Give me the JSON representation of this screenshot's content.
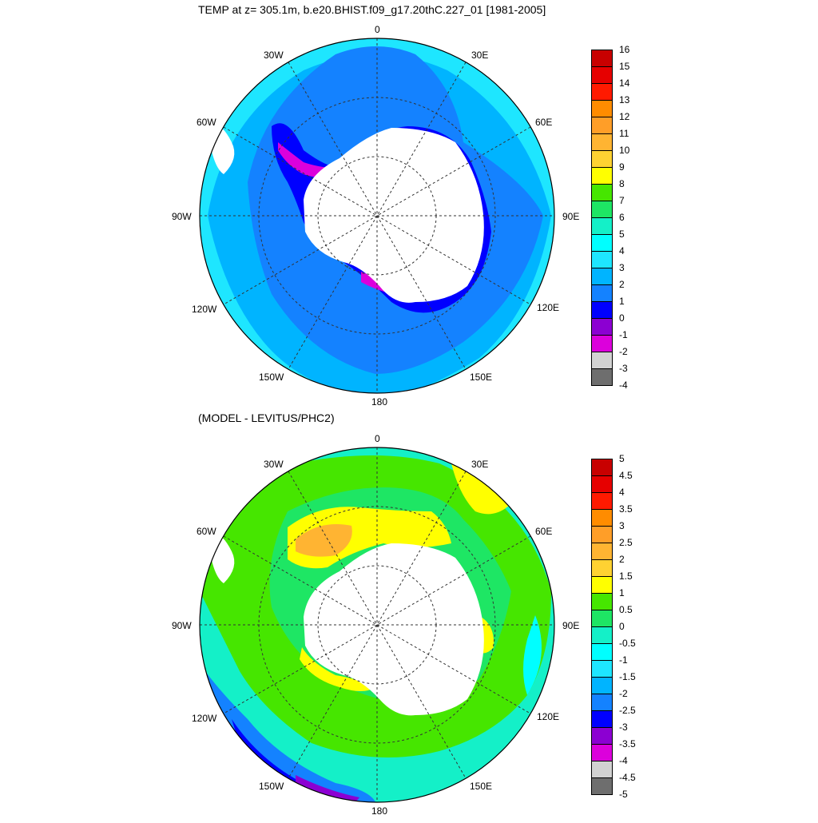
{
  "title_top": "TEMP at z= 305.1m, b.e20.BHIST.f09_g17.20thC.227_01 [1981-2005]",
  "title_bottom": "(MODEL - LEVITUS/PHC2)",
  "lon_labels": {
    "top": "0",
    "e30": "30E",
    "e60": "60E",
    "e90": "90E",
    "e120": "120E",
    "e150": "150E",
    "bottom": "180",
    "w150": "150W",
    "w120": "120W",
    "w90": "90W",
    "w60": "60W",
    "w30": "30W"
  },
  "colorbar_top": {
    "labels": [
      "16",
      "15",
      "14",
      "13",
      "12",
      "11",
      "10",
      "9",
      "8",
      "7",
      "6",
      "5",
      "4",
      "3",
      "2",
      "1",
      "0",
      "-1",
      "-2",
      "-3",
      "-4"
    ],
    "colors": [
      "#c80000",
      "#e60000",
      "#ff1a00",
      "#ff8c00",
      "#ff9e28",
      "#ffb432",
      "#ffd232",
      "#ffff00",
      "#46e600",
      "#1ee664",
      "#14f0c8",
      "#00ffff",
      "#1ee6ff",
      "#00b4ff",
      "#1482ff",
      "#0000ff",
      "#8c00d2",
      "#dc00dc",
      "#d2d2d2",
      "#6e6e6e"
    ]
  },
  "colorbar_bottom": {
    "labels": [
      "5",
      "4.5",
      "4",
      "3.5",
      "3",
      "2.5",
      "2",
      "1.5",
      "1",
      "0.5",
      "0",
      "-0.5",
      "-1",
      "-1.5",
      "-2",
      "-2.5",
      "-3",
      "-3.5",
      "-4",
      "-4.5",
      "-5"
    ],
    "colors": [
      "#c80000",
      "#e60000",
      "#ff1a00",
      "#ff8c00",
      "#ff9e28",
      "#ffb432",
      "#ffd232",
      "#ffff00",
      "#46e600",
      "#1ee664",
      "#14f0c8",
      "#00ffff",
      "#1ee6ff",
      "#00b4ff",
      "#1482ff",
      "#0000ff",
      "#8c00d2",
      "#dc00dc",
      "#d2d2d2",
      "#6e6e6e"
    ]
  }
}
